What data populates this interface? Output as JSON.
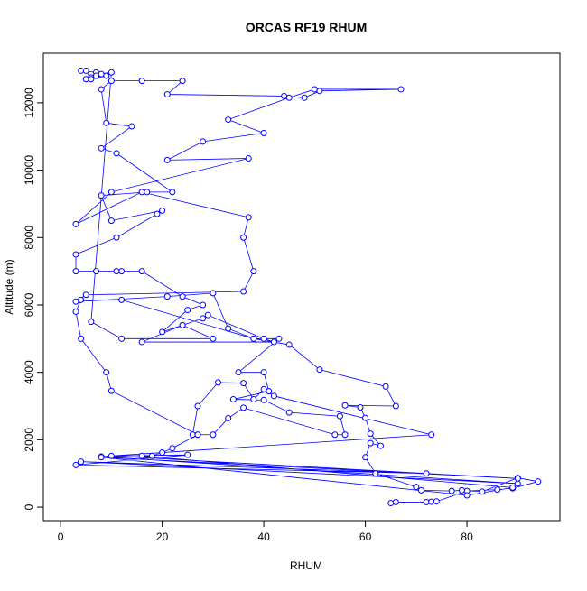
{
  "chart_data": {
    "type": "line",
    "title": "ORCAS RF19 RHUM",
    "x_label": "RHUM",
    "y_label": "Altitude (m)",
    "color": "#0000ff",
    "x": [
      65,
      66,
      72,
      73,
      74,
      80,
      86,
      89,
      94,
      90,
      83,
      79,
      77,
      71,
      70,
      62,
      60,
      61,
      63,
      61,
      60,
      59,
      56,
      66,
      64,
      51,
      45,
      38,
      43,
      35,
      40,
      41,
      34,
      40,
      45,
      55,
      56,
      54,
      36,
      33,
      30,
      27,
      26,
      27,
      31,
      36,
      38,
      40,
      42,
      73,
      8,
      90,
      4,
      72,
      3,
      25,
      10,
      90,
      8,
      80,
      89,
      16,
      18,
      20,
      22,
      27,
      10,
      9,
      4,
      3,
      4,
      12,
      38,
      33,
      30,
      21,
      3,
      5,
      36,
      38,
      36,
      37,
      16,
      3,
      10,
      37,
      21,
      28,
      40,
      33,
      45,
      50,
      67,
      51,
      48,
      44,
      21,
      24,
      16,
      10,
      8,
      9,
      14,
      8,
      11,
      22,
      17,
      8,
      10,
      20,
      19,
      11,
      3,
      3,
      7,
      12,
      11,
      16,
      24,
      28,
      25,
      20,
      24,
      28,
      29,
      40,
      42,
      16,
      24,
      30,
      12,
      6,
      10,
      8,
      7,
      5,
      6,
      7,
      4,
      5,
      6,
      9,
      7
    ],
    "values": [
      120,
      150,
      150,
      160,
      170,
      480,
      520,
      560,
      760,
      870,
      460,
      500,
      480,
      500,
      600,
      1000,
      1480,
      1900,
      1820,
      2180,
      2650,
      2960,
      3020,
      3000,
      3580,
      4080,
      4820,
      5000,
      5000,
      4000,
      4000,
      3440,
      3200,
      3180,
      2810,
      2700,
      2150,
      2150,
      2950,
      2640,
      2150,
      2150,
      2150,
      3000,
      3700,
      3680,
      3200,
      3500,
      3300,
      2150,
      1500,
      700,
      1350,
      1000,
      1250,
      1550,
      1520,
      850,
      1480,
      350,
      580,
      1520,
      1520,
      1620,
      1750,
      2150,
      3450,
      4000,
      5000,
      5800,
      6150,
      6150,
      5000,
      5300,
      6350,
      6250,
      6100,
      6300,
      6400,
      7000,
      8000,
      8600,
      9350,
      8400,
      9350,
      10350,
      10300,
      10850,
      11100,
      11500,
      12150,
      12400,
      12400,
      12350,
      12150,
      12200,
      12250,
      12650,
      12650,
      12650,
      12400,
      11400,
      11300,
      10650,
      10500,
      9350,
      9350,
      9250,
      8500,
      8800,
      8700,
      8000,
      7500,
      7000,
      7000,
      7000,
      7000,
      7000,
      6250,
      6000,
      5850,
      5200,
      5400,
      5600,
      5700,
      5000,
      4900,
      4900,
      5400,
      5000,
      5000,
      5500,
      12900,
      12850,
      12800,
      12700,
      12750,
      12900,
      12950,
      12950,
      12700,
      12800,
      12800
    ],
    "xlim": [
      -3.4,
      98.3
    ],
    "ylim": [
      -400,
      13470
    ],
    "xticks": [
      0,
      20,
      40,
      60,
      80
    ],
    "yticks": [
      0,
      2000,
      4000,
      6000,
      8000,
      10000,
      12000
    ]
  }
}
